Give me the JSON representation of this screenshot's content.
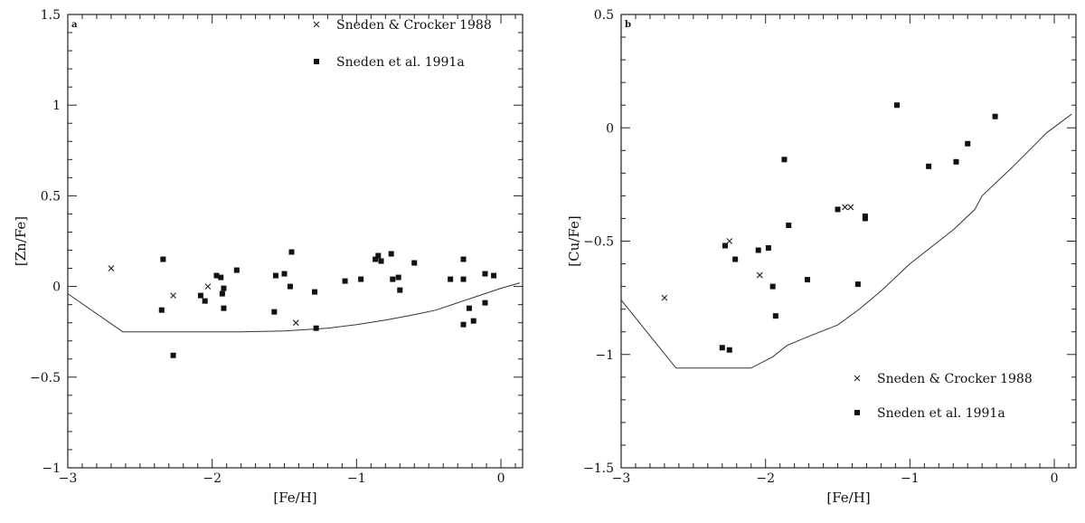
{
  "chart_data": [
    {
      "type": "scatter",
      "panel_letter": "a",
      "xlabel": "[Fe/H]",
      "ylabel": "[Zn/Fe]",
      "xlim": [
        -3,
        0.15
      ],
      "ylim": [
        -1,
        1.5
      ],
      "x_ticks": [
        -3,
        -2,
        -1,
        0
      ],
      "x_tick_labels": [
        "−3",
        "−2",
        "−1",
        "0"
      ],
      "y_ticks": [
        -1,
        -0.5,
        0,
        0.5,
        1,
        1.5
      ],
      "y_tick_labels": [
        "−1",
        "−0.5",
        "0",
        "0.5",
        "1",
        "1.5"
      ],
      "legend_position": "top-right",
      "series": [
        {
          "name": "Sneden & Crocker 1988",
          "marker": "x",
          "points": [
            [
              -2.7,
              0.1
            ],
            [
              -2.27,
              -0.05
            ],
            [
              -2.03,
              0.0
            ],
            [
              -1.42,
              -0.2
            ]
          ]
        },
        {
          "name": "Sneden et al. 1991a",
          "marker": "square",
          "points": [
            [
              -2.34,
              0.15
            ],
            [
              -2.35,
              -0.13
            ],
            [
              -2.27,
              -0.38
            ],
            [
              -2.08,
              -0.05
            ],
            [
              -2.05,
              -0.08
            ],
            [
              -1.97,
              0.06
            ],
            [
              -1.94,
              0.05
            ],
            [
              -1.93,
              -0.04
            ],
            [
              -1.92,
              -0.01
            ],
            [
              -1.92,
              -0.12
            ],
            [
              -1.83,
              0.09
            ],
            [
              -1.57,
              -0.14
            ],
            [
              -1.56,
              0.06
            ],
            [
              -1.5,
              0.07
            ],
            [
              -1.46,
              0.0
            ],
            [
              -1.45,
              0.19
            ],
            [
              -1.29,
              -0.03
            ],
            [
              -1.28,
              -0.23
            ],
            [
              -1.08,
              0.03
            ],
            [
              -0.97,
              0.04
            ],
            [
              -0.87,
              0.15
            ],
            [
              -0.85,
              0.17
            ],
            [
              -0.83,
              0.14
            ],
            [
              -0.76,
              0.18
            ],
            [
              -0.75,
              0.04
            ],
            [
              -0.71,
              0.05
            ],
            [
              -0.7,
              -0.02
            ],
            [
              -0.6,
              0.13
            ],
            [
              -0.35,
              0.04
            ],
            [
              -0.26,
              0.15
            ],
            [
              -0.26,
              0.04
            ],
            [
              -0.26,
              -0.21
            ],
            [
              -0.22,
              -0.12
            ],
            [
              -0.19,
              -0.19
            ],
            [
              -0.11,
              0.07
            ],
            [
              -0.11,
              -0.09
            ],
            [
              -0.05,
              0.06
            ]
          ]
        }
      ],
      "model_curve": [
        [
          -3.0,
          -0.04
        ],
        [
          -2.62,
          -0.25
        ],
        [
          -2.2,
          -0.25
        ],
        [
          -1.8,
          -0.25
        ],
        [
          -1.5,
          -0.245
        ],
        [
          -1.2,
          -0.23
        ],
        [
          -1.0,
          -0.21
        ],
        [
          -0.8,
          -0.185
        ],
        [
          -0.6,
          -0.155
        ],
        [
          -0.45,
          -0.13
        ],
        [
          -0.3,
          -0.09
        ],
        [
          -0.15,
          -0.05
        ],
        [
          0.0,
          -0.01
        ],
        [
          0.13,
          0.02
        ]
      ]
    },
    {
      "type": "scatter",
      "panel_letter": "b",
      "xlabel": "[Fe/H]",
      "ylabel": "[Cu/Fe]",
      "xlim": [
        -3,
        0.15
      ],
      "ylim": [
        -1.5,
        0.5
      ],
      "x_ticks": [
        -3,
        -2,
        -1,
        0
      ],
      "x_tick_labels": [
        "−3",
        "−2",
        "−1",
        "0"
      ],
      "y_ticks": [
        -1.5,
        -1,
        -0.5,
        0,
        0.5
      ],
      "y_tick_labels": [
        "−1.5",
        "−1",
        "−0.5",
        "0",
        "0.5"
      ],
      "legend_position": "bottom-right",
      "series": [
        {
          "name": "Sneden & Crocker 1988",
          "marker": "x",
          "points": [
            [
              -2.7,
              -0.75
            ],
            [
              -2.25,
              -0.5
            ],
            [
              -2.04,
              -0.65
            ],
            [
              -1.45,
              -0.35
            ],
            [
              -1.41,
              -0.35
            ]
          ]
        },
        {
          "name": "Sneden et al. 1991a",
          "marker": "square",
          "points": [
            [
              -2.28,
              -0.52
            ],
            [
              -2.21,
              -0.58
            ],
            [
              -2.3,
              -0.97
            ],
            [
              -2.25,
              -0.98
            ],
            [
              -2.05,
              -0.54
            ],
            [
              -1.98,
              -0.53
            ],
            [
              -1.95,
              -0.7
            ],
            [
              -1.93,
              -0.83
            ],
            [
              -1.87,
              -0.14
            ],
            [
              -1.84,
              -0.43
            ],
            [
              -1.71,
              -0.67
            ],
            [
              -1.5,
              -0.36
            ],
            [
              -1.36,
              -0.69
            ],
            [
              -1.31,
              -0.4
            ],
            [
              -1.31,
              -0.39
            ],
            [
              -1.09,
              0.1
            ],
            [
              -0.87,
              -0.17
            ],
            [
              -0.68,
              -0.15
            ],
            [
              -0.6,
              -0.07
            ],
            [
              -0.41,
              0.05
            ]
          ]
        }
      ],
      "model_curve": [
        [
          -3.0,
          -0.76
        ],
        [
          -2.62,
          -1.06
        ],
        [
          -2.35,
          -1.06
        ],
        [
          -2.1,
          -1.06
        ],
        [
          -1.95,
          -1.01
        ],
        [
          -1.85,
          -0.96
        ],
        [
          -1.7,
          -0.92
        ],
        [
          -1.5,
          -0.87
        ],
        [
          -1.35,
          -0.8
        ],
        [
          -1.2,
          -0.72
        ],
        [
          -1.0,
          -0.6
        ],
        [
          -0.7,
          -0.45
        ],
        [
          -0.55,
          -0.36
        ],
        [
          -0.5,
          -0.3
        ],
        [
          -0.3,
          -0.18
        ],
        [
          -0.05,
          -0.02
        ],
        [
          0.12,
          0.06
        ]
      ]
    }
  ]
}
